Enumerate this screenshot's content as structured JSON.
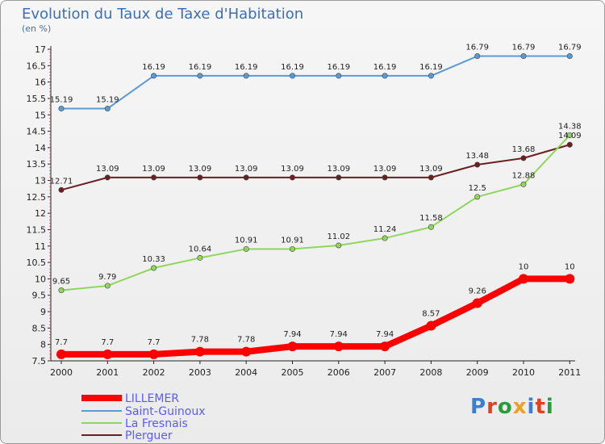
{
  "chart_data": {
    "type": "line",
    "title": "Evolution du Taux de Taxe d'Habitation",
    "ylabel": "(en %)",
    "xlabel": "",
    "x": [
      "2000",
      "2001",
      "2002",
      "2003",
      "2004",
      "2005",
      "2006",
      "2007",
      "2008",
      "2009",
      "2010",
      "2011"
    ],
    "ylim": [
      7.5,
      17
    ],
    "yticks": [
      "7.5",
      "8",
      "8.5",
      "9",
      "9.5",
      "10",
      "10.5",
      "11",
      "11.5",
      "12",
      "12.5",
      "13",
      "13.5",
      "14",
      "14.5",
      "15",
      "15.5",
      "16",
      "16.5",
      "17"
    ],
    "grid": false,
    "legend_position": "bottom-left",
    "series": [
      {
        "name": "LILLEMER",
        "color": "#ff0000",
        "emphasis": true,
        "values": [
          7.7,
          7.7,
          7.7,
          7.78,
          7.78,
          7.94,
          7.94,
          7.94,
          8.57,
          9.26,
          10,
          10
        ],
        "labels": [
          "7.7",
          "7.7",
          "7.7",
          "7.78",
          "7.78",
          "7.94",
          "7.94",
          "7.94",
          "8.57",
          "9.26",
          "10",
          "10"
        ]
      },
      {
        "name": "Saint-Guinoux",
        "color": "#5b9bd5",
        "values": [
          15.19,
          15.19,
          16.19,
          16.19,
          16.19,
          16.19,
          16.19,
          16.19,
          16.19,
          16.79,
          16.79,
          16.79
        ],
        "labels": [
          "15.19",
          "15.19",
          "16.19",
          "16.19",
          "16.19",
          "16.19",
          "16.19",
          "16.19",
          "16.19",
          "16.79",
          "16.79",
          "16.79"
        ]
      },
      {
        "name": "La Fresnais",
        "color": "#8fd65c",
        "values": [
          9.65,
          9.79,
          10.33,
          10.64,
          10.91,
          10.91,
          11.02,
          11.24,
          11.58,
          12.5,
          12.88,
          14.38
        ],
        "labels": [
          "9.65",
          "9.79",
          "10.33",
          "10.64",
          "10.91",
          "10.91",
          "11.02",
          "11.24",
          "11.58",
          "12.5",
          "12.88",
          "14.38"
        ]
      },
      {
        "name": "Plerguer",
        "color": "#6b1f1f",
        "values": [
          12.71,
          13.09,
          13.09,
          13.09,
          13.09,
          13.09,
          13.09,
          13.09,
          13.09,
          13.48,
          13.68,
          14.09
        ],
        "labels": [
          "12.71",
          "13.09",
          "13.09",
          "13.09",
          "13.09",
          "13.09",
          "13.09",
          "13.09",
          "13.09",
          "13.48",
          "13.68",
          "14.09"
        ]
      }
    ]
  },
  "logo": {
    "text": "Proxiti",
    "colors": [
      "#3a7fd0",
      "#e04020",
      "#2a9a3a",
      "#f0a020",
      "#3a7fd0",
      "#e04020",
      "#2a9a3a"
    ]
  }
}
